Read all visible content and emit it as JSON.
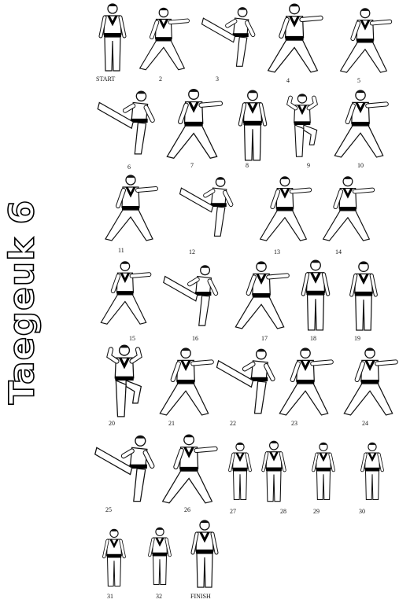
{
  "title": "Taegeuk 6",
  "colors": {
    "ink": "#111111",
    "belt": "#000000",
    "background": "#ffffff"
  },
  "steps": [
    {
      "label": "START",
      "pose": "stand"
    },
    {
      "label": "2",
      "pose": "stance"
    },
    {
      "label": "3",
      "pose": "kick"
    },
    {
      "label": "4",
      "pose": "stance"
    },
    {
      "label": "5",
      "pose": "stance"
    },
    {
      "label": "6",
      "pose": "kick"
    },
    {
      "label": "7",
      "pose": "stance"
    },
    {
      "label": "8",
      "pose": "stand"
    },
    {
      "label": "9",
      "pose": "knee"
    },
    {
      "label": "10",
      "pose": "stance"
    },
    {
      "label": "11",
      "pose": "stance"
    },
    {
      "label": "12",
      "pose": "kick"
    },
    {
      "label": "13",
      "pose": "stance"
    },
    {
      "label": "14",
      "pose": "stance"
    },
    {
      "label": "15",
      "pose": "stance"
    },
    {
      "label": "16",
      "pose": "kick"
    },
    {
      "label": "17",
      "pose": "stance"
    },
    {
      "label": "18",
      "pose": "stand"
    },
    {
      "label": "19",
      "pose": "stand"
    },
    {
      "label": "20",
      "pose": "knee"
    },
    {
      "label": "21",
      "pose": "stance"
    },
    {
      "label": "22",
      "pose": "kick"
    },
    {
      "label": "23",
      "pose": "stance"
    },
    {
      "label": "24",
      "pose": "stance"
    },
    {
      "label": "25",
      "pose": "kick"
    },
    {
      "label": "26",
      "pose": "stance"
    },
    {
      "label": "27",
      "pose": "stand"
    },
    {
      "label": "28",
      "pose": "stand"
    },
    {
      "label": "29",
      "pose": "stand"
    },
    {
      "label": "30",
      "pose": "stand"
    },
    {
      "label": "31",
      "pose": "stand"
    },
    {
      "label": "32",
      "pose": "stand"
    },
    {
      "label": "FINISH",
      "pose": "stand"
    }
  ]
}
